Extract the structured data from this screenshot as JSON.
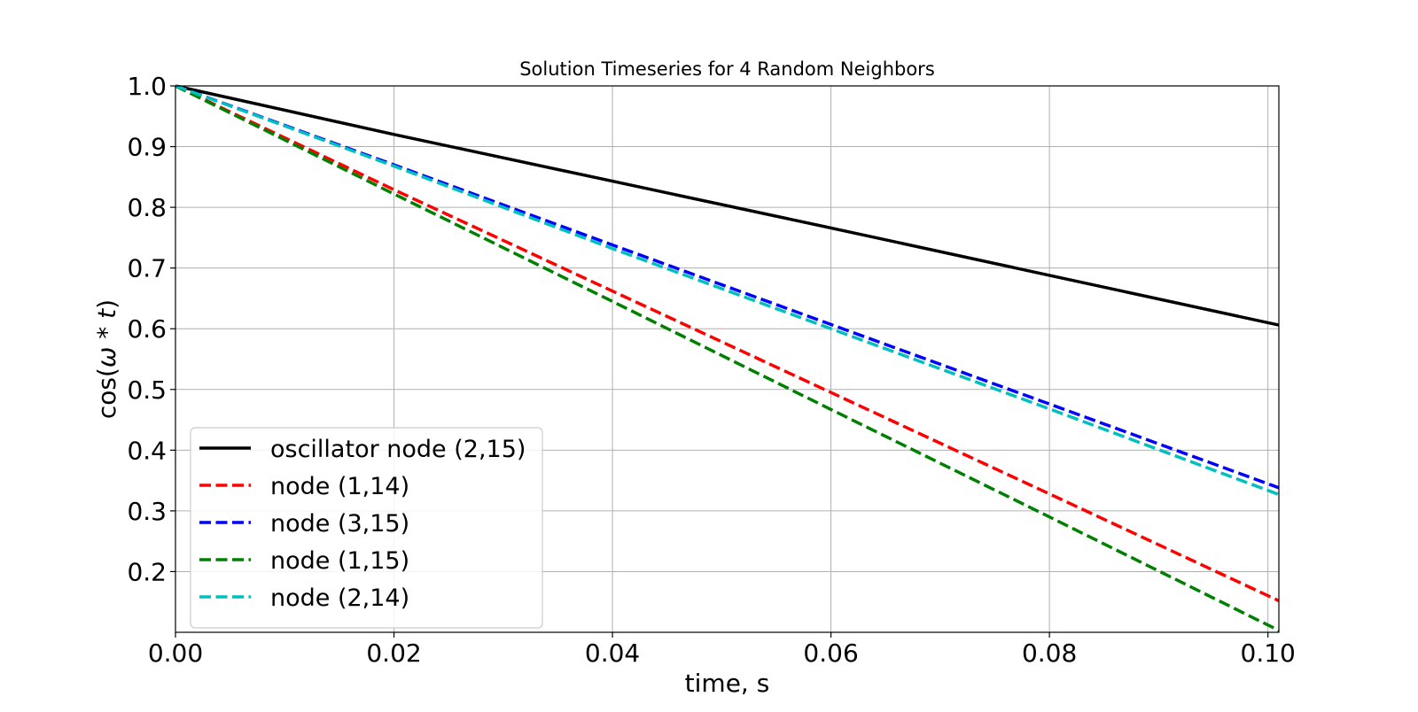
{
  "chart_data": {
    "type": "line",
    "title": "Solution Timeseries for 4 Random Neighbors",
    "xlabel": "time, s",
    "ylabel_parts": [
      "cos(",
      "ω",
      " * ",
      "t",
      ")"
    ],
    "xlim": [
      0.0,
      0.101
    ],
    "ylim": [
      0.1,
      1.0
    ],
    "grid": true,
    "legend_placement": "lower-left",
    "x_ticks": [
      0.0,
      0.02,
      0.04,
      0.06,
      0.08,
      0.1
    ],
    "x_tick_labels": [
      "0.00",
      "0.02",
      "0.04",
      "0.06",
      "0.08",
      "0.10"
    ],
    "y_ticks": [
      0.2,
      0.3,
      0.4,
      0.5,
      0.6,
      0.7,
      0.8,
      0.9,
      1.0
    ],
    "y_tick_labels": [
      "0.2",
      "0.3",
      "0.4",
      "0.5",
      "0.6",
      "0.7",
      "0.8",
      "0.9",
      "1.0"
    ],
    "series": [
      {
        "name": "oscillator node (2,15)",
        "color": "#000000",
        "style": "solid",
        "x": [
          0.0,
          0.02,
          0.04,
          0.06,
          0.08,
          0.101
        ],
        "y": [
          1.0,
          0.92,
          0.843,
          0.766,
          0.688,
          0.606
        ]
      },
      {
        "name": "node (1,14)",
        "color": "#ff0000",
        "style": "dashed",
        "x": [
          0.0,
          0.02,
          0.04,
          0.06,
          0.08,
          0.101
        ],
        "y": [
          1.0,
          0.829,
          0.662,
          0.495,
          0.328,
          0.152
        ]
      },
      {
        "name": "node (3,15)",
        "color": "#0000ff",
        "style": "dashed",
        "x": [
          0.0,
          0.02,
          0.04,
          0.06,
          0.08,
          0.101
        ],
        "y": [
          1.0,
          0.87,
          0.738,
          0.607,
          0.476,
          0.338
        ]
      },
      {
        "name": "node (1,15)",
        "color": "#008000",
        "style": "dashed",
        "x": [
          0.0,
          0.02,
          0.04,
          0.06,
          0.08,
          0.101
        ],
        "y": [
          1.0,
          0.822,
          0.645,
          0.467,
          0.29,
          0.103
        ]
      },
      {
        "name": "node (2,14)",
        "color": "#00bfbf",
        "style": "dashed",
        "x": [
          0.0,
          0.02,
          0.04,
          0.06,
          0.08,
          0.101
        ],
        "y": [
          1.0,
          0.868,
          0.732,
          0.6,
          0.468,
          0.327
        ]
      }
    ]
  }
}
